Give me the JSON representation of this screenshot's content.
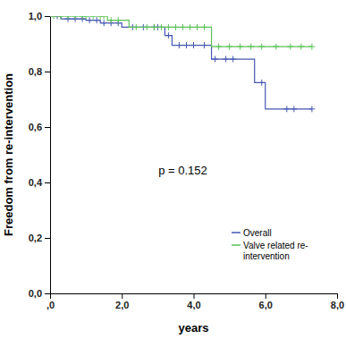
{
  "chart_data": {
    "type": "line",
    "xlabel": "years",
    "ylabel": "Freedom from re-intervention",
    "annotation": "p = 0.152",
    "xlim": [
      0,
      8
    ],
    "xticks": [
      {
        "value": 0,
        "label": ",0"
      },
      {
        "value": 2,
        "label": "2,0"
      },
      {
        "value": 4,
        "label": "4,0"
      },
      {
        "value": 6,
        "label": "6,0"
      },
      {
        "value": 8,
        "label": "8,0"
      }
    ],
    "ylim": [
      0,
      1
    ],
    "yticks": [
      {
        "value": 0,
        "label": "0,0"
      },
      {
        "value": 0.2,
        "label": "0,2"
      },
      {
        "value": 0.4,
        "label": "0,4"
      },
      {
        "value": 0.6,
        "label": "0,6"
      },
      {
        "value": 0.8,
        "label": "0,8"
      },
      {
        "value": 1,
        "label": "1,0"
      }
    ],
    "grid": false,
    "legend": "bottom-right",
    "line_style": "step",
    "marker": "plus",
    "series": [
      {
        "name": "Overall",
        "color": "#4657b3",
        "x": [
          0,
          0.3,
          1.0,
          1.4,
          2.0,
          3.2,
          3.4,
          4.5,
          5.7,
          6.0,
          7.3
        ],
        "values": [
          1.0,
          0.99,
          0.985,
          0.975,
          0.96,
          0.93,
          0.895,
          0.845,
          0.76,
          0.665,
          0.665
        ],
        "censor_x": [
          0.2,
          0.5,
          0.7,
          0.9,
          1.1,
          1.3,
          1.5,
          1.7,
          1.9,
          2.3,
          2.6,
          2.9,
          3.0,
          3.3,
          3.6,
          3.8,
          4.0,
          4.3,
          4.6,
          4.9,
          5.1,
          5.9,
          6.6,
          6.8,
          7.3
        ],
        "censor_values": [
          1.0,
          0.99,
          0.99,
          0.99,
          0.985,
          0.985,
          0.975,
          0.975,
          0.975,
          0.96,
          0.96,
          0.96,
          0.96,
          0.93,
          0.895,
          0.895,
          0.895,
          0.895,
          0.845,
          0.845,
          0.845,
          0.76,
          0.665,
          0.665,
          0.665
        ]
      },
      {
        "name": "Valve related re-intervention",
        "color": "#5cc159",
        "x": [
          0,
          1.6,
          2.2,
          4.5,
          7.3
        ],
        "values": [
          1.0,
          0.985,
          0.96,
          0.89,
          0.89
        ],
        "censor_x": [
          0.1,
          0.3,
          0.5,
          0.7,
          0.9,
          1.0,
          1.2,
          1.4,
          1.5,
          1.7,
          1.9,
          2.4,
          2.7,
          2.9,
          3.1,
          3.3,
          3.5,
          3.7,
          3.9,
          4.1,
          4.3,
          4.7,
          5.0,
          5.3,
          5.6,
          5.9,
          6.3,
          6.7,
          7.0,
          7.3
        ],
        "censor_values": [
          1.0,
          1.0,
          1.0,
          1.0,
          1.0,
          1.0,
          1.0,
          1.0,
          1.0,
          0.985,
          0.985,
          0.96,
          0.96,
          0.96,
          0.96,
          0.96,
          0.96,
          0.96,
          0.96,
          0.96,
          0.96,
          0.89,
          0.89,
          0.89,
          0.89,
          0.89,
          0.89,
          0.89,
          0.89,
          0.89
        ]
      }
    ]
  }
}
